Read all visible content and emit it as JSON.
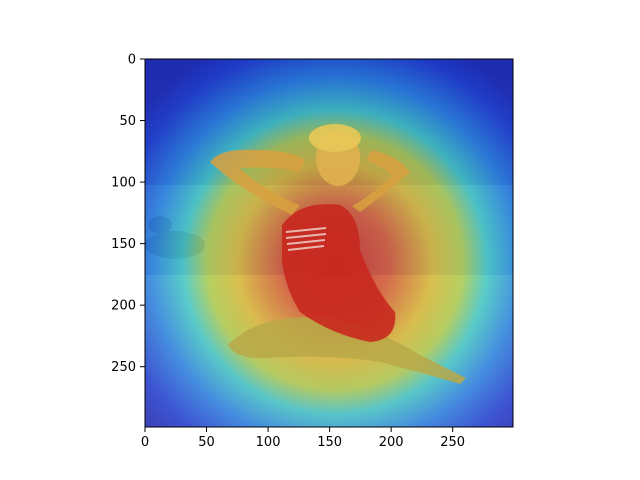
{
  "chart_data": {
    "type": "heatmap",
    "title": "",
    "xlabel": "",
    "ylabel": "",
    "xlim": [
      0,
      299
    ],
    "ylim": [
      299,
      0
    ],
    "x_ticks": [
      0,
      50,
      100,
      150,
      200,
      250
    ],
    "y_ticks": [
      0,
      50,
      100,
      150,
      200,
      250
    ],
    "x_tick_labels": [
      "0",
      "50",
      "100",
      "150",
      "200",
      "250"
    ],
    "y_tick_labels": [
      "0",
      "50",
      "100",
      "150",
      "200",
      "250"
    ],
    "grid": false,
    "legend": "none",
    "colormap": "jet",
    "heatmap_peak": {
      "x": 155,
      "y": 165
    },
    "background_image": "vintage photo of woman in red striped swimsuit sitting on beach",
    "colors": {
      "jet_low": "#1f2fd6",
      "jet_mid": "#3fe0c8",
      "jet_high": "#e82a1e",
      "swimsuit": "#c8281e",
      "sand": "#8fa0d8"
    }
  }
}
